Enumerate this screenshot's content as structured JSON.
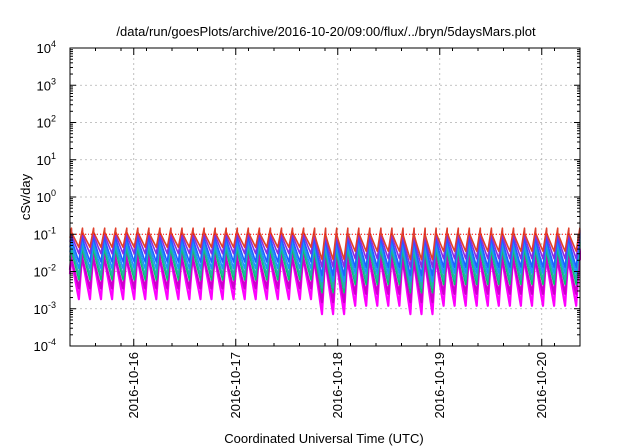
{
  "chart_data": {
    "type": "line",
    "title": "/data/run/goesPlots/archive/2016-10-20/09:00/flux/../bryn/5daysMars.plot",
    "xlabel": "Coordinated Universal Time (UTC)",
    "ylabel": "cSv/day",
    "yscale": "log",
    "ylim": [
      0.0001,
      10000
    ],
    "yticks": [
      {
        "mant": "10",
        "exp": "-4",
        "value": 0.0001
      },
      {
        "mant": "10",
        "exp": "-3",
        "value": 0.001
      },
      {
        "mant": "10",
        "exp": "-2",
        "value": 0.01
      },
      {
        "mant": "10",
        "exp": "-1",
        "value": 0.1
      },
      {
        "mant": "10",
        "exp": "0",
        "value": 1
      },
      {
        "mant": "10",
        "exp": "1",
        "value": 10
      },
      {
        "mant": "10",
        "exp": "2",
        "value": 100
      },
      {
        "mant": "10",
        "exp": "3",
        "value": 1000
      },
      {
        "mant": "10",
        "exp": "4",
        "value": 10000
      }
    ],
    "xlim": [
      "2016-10-15T09:00",
      "2016-10-20T09:00"
    ],
    "xticks": [
      "2016-10-16",
      "2016-10-17",
      "2016-10-18",
      "2016-10-19",
      "2016-10-20"
    ],
    "grid": true,
    "sawtooth": {
      "period_hours": 2.6,
      "start": "2016-10-15T09:00",
      "day_offsets": [
        0,
        0.5,
        1,
        1.5,
        2,
        2.5,
        3,
        3.5,
        4,
        4.5,
        5
      ],
      "dip_days": [
        2.45,
        3.4
      ]
    },
    "series": [
      {
        "color": "#ff00ff",
        "peak": 0.04,
        "trough": 0.0018,
        "late_trough": 0.0012
      },
      {
        "color": "#cc00cc",
        "peak": 0.035,
        "trough": 0.0035,
        "late_trough": 0.0025
      },
      {
        "color": "#00cc66",
        "peak": 0.06,
        "trough": 0.006,
        "late_trough": 0.0045
      },
      {
        "color": "#20b2aa",
        "peak": 0.07,
        "trough": 0.008,
        "late_trough": 0.006
      },
      {
        "color": "#1e90ff",
        "peak": 0.09,
        "trough": 0.012,
        "late_trough": 0.009
      },
      {
        "color": "#2060ff",
        "peak": 0.11,
        "trough": 0.018,
        "late_trough": 0.013
      },
      {
        "color": "#8a2be2",
        "peak": 0.13,
        "trough": 0.03,
        "late_trough": 0.022
      },
      {
        "color": "#e0402a",
        "peak": 0.145,
        "trough": 0.045,
        "late_trough": 0.035
      }
    ],
    "reference_line": {
      "value": 0.1,
      "color": "#ff0000"
    }
  }
}
